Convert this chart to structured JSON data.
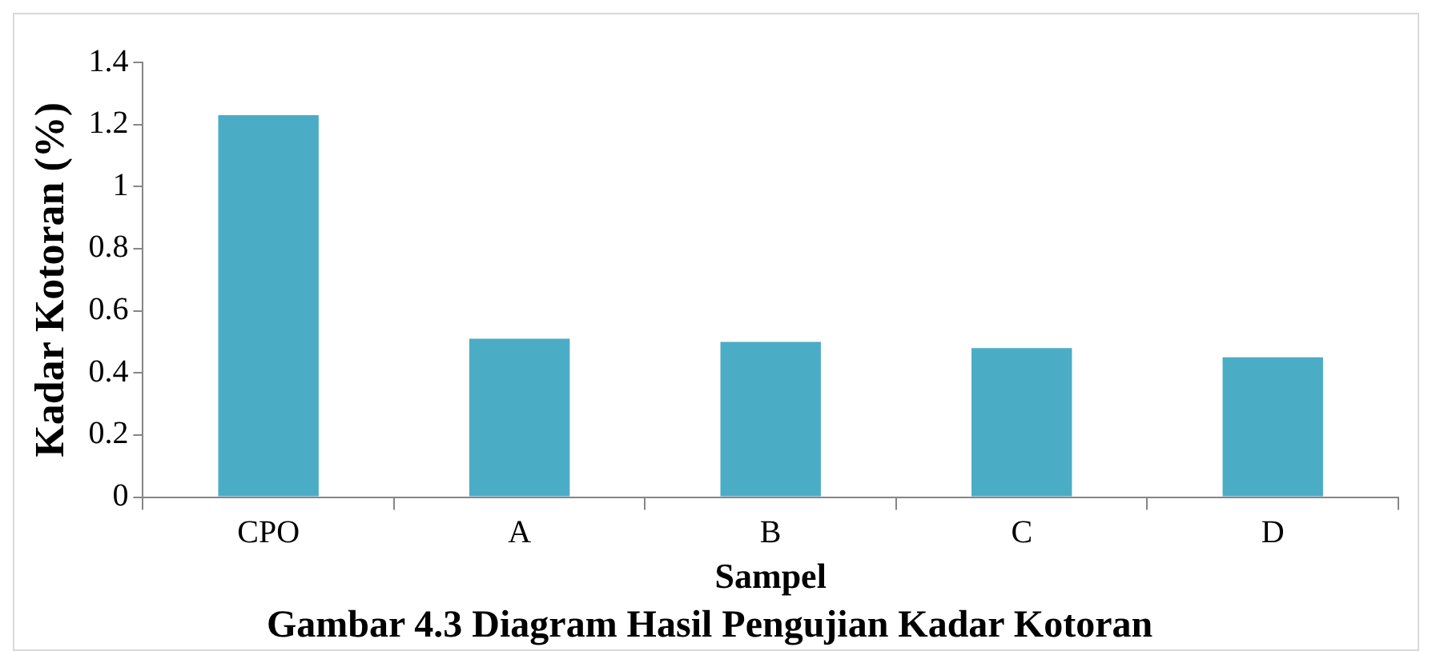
{
  "chart_data": {
    "type": "bar",
    "title": "Gambar 4.3 Diagram Hasil Pengujian Kadar Kotoran",
    "xlabel": "Sampel",
    "ylabel": "Kadar Kotoran (%)",
    "categories": [
      "CPO",
      "A",
      "B",
      "C",
      "D"
    ],
    "values": [
      1.23,
      0.51,
      0.5,
      0.48,
      0.45
    ],
    "color": "#4bacc6",
    "ylim": [
      0,
      1.4
    ],
    "yticks": [
      0,
      0.2,
      0.4,
      0.6,
      0.8,
      1,
      1.2,
      1.4
    ],
    "grid": false,
    "legend": false
  }
}
